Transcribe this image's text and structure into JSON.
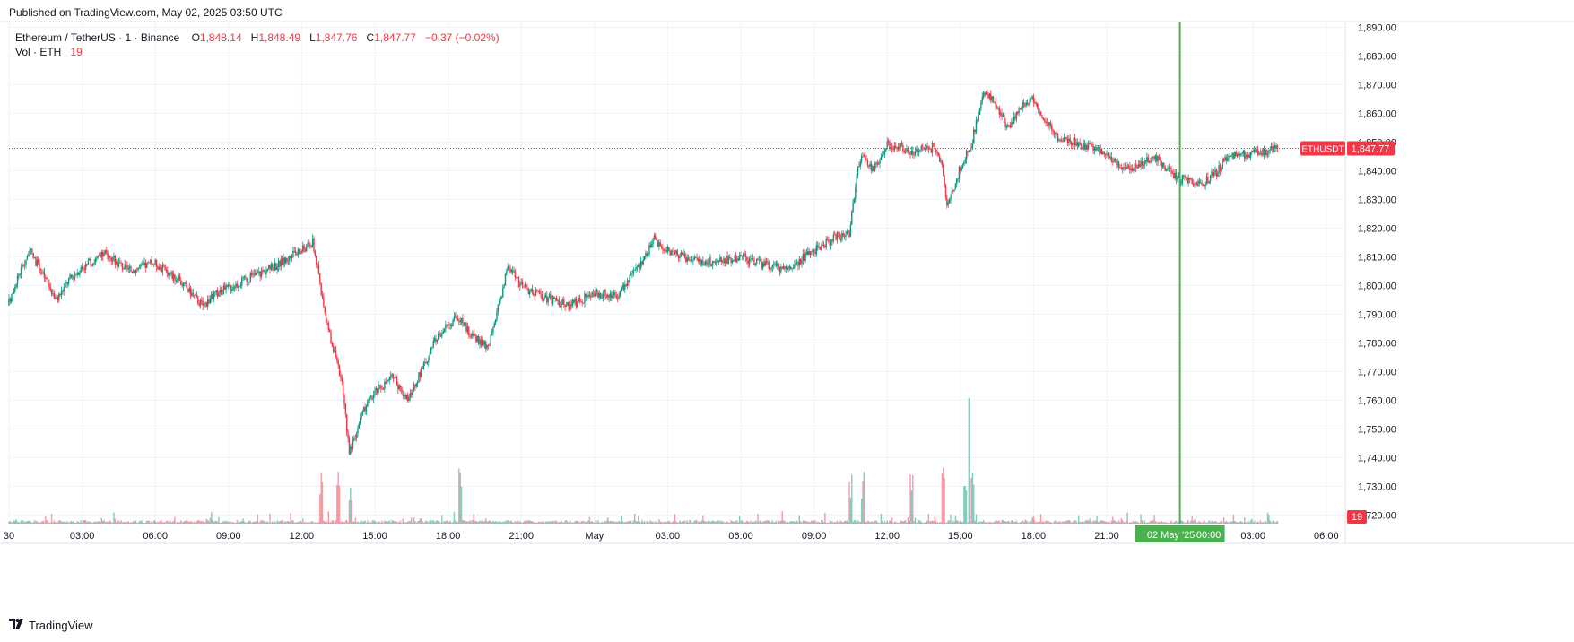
{
  "header": {
    "published": "Published on TradingView.com, May 02, 2025 03:50 UTC"
  },
  "legend": {
    "symbol": "Ethereum / TetherUS · 1 · Binance",
    "open_label": "O",
    "open": "1,848.14",
    "high_label": "H",
    "high": "1,848.49",
    "low_label": "L",
    "low": "1,847.76",
    "close_label": "C",
    "close": "1,847.77",
    "change": "−0.37 (−0.02%)",
    "volume_label": "Vol · ETH",
    "volume": "19"
  },
  "footer": {
    "brand": "TradingView",
    "logo": "TV-logo-icon"
  },
  "colors": {
    "up": "#089981",
    "down": "#f23645",
    "crosshair": "#4caf50",
    "grid": "#f0f3fa",
    "text": "#131722"
  },
  "chart_data": {
    "type": "candlestick",
    "title": "Ethereum / TetherUS · 1 · Binance",
    "interval": "1 minute",
    "xlabel": "",
    "ylabel": "",
    "ylim": [
      1717,
      1892
    ],
    "y_ticks": [
      "1,890.00",
      "1,880.00",
      "1,870.00",
      "1,860.00",
      "1,850.00",
      "1,840.00",
      "1,830.00",
      "1,820.00",
      "1,810.00",
      "1,800.00",
      "1,790.00",
      "1,780.00",
      "1,770.00",
      "1,760.00",
      "1,750.00",
      "1,740.00",
      "1,730.00",
      "1,720.00"
    ],
    "y_tick_values": [
      1890,
      1880,
      1870,
      1860,
      1850,
      1840,
      1830,
      1820,
      1810,
      1800,
      1790,
      1780,
      1770,
      1760,
      1750,
      1740,
      1730,
      1720
    ],
    "x_ticks": [
      "30",
      "03:00",
      "06:00",
      "09:00",
      "12:00",
      "15:00",
      "18:00",
      "21:00",
      "May",
      "03:00",
      "06:00",
      "09:00",
      "12:00",
      "15:00",
      "18:00",
      "21:00",
      "03:00",
      "06:00"
    ],
    "x_tick_hours": [
      0,
      3,
      6,
      9,
      12,
      15,
      18,
      21,
      24,
      27,
      30,
      33,
      36,
      39,
      42,
      45,
      51,
      54
    ],
    "price_path": {
      "hours": [
        0,
        0.4,
        0.9,
        1.3,
        2.0,
        2.5,
        3.0,
        4.0,
        5.0,
        6.0,
        7.0,
        8.0,
        8.5,
        9.0,
        10.0,
        11.0,
        12.0,
        12.5,
        12.7,
        13.0,
        13.4,
        13.7,
        14.0,
        14.4,
        14.8,
        15.2,
        15.8,
        16.4,
        17.0,
        17.6,
        18.0,
        18.5,
        19.0,
        19.7,
        20.0,
        20.5,
        21.0,
        22.0,
        23.0,
        24.0,
        25.0,
        26.0,
        26.5,
        27.0,
        28.0,
        29.0,
        30.0,
        31.0,
        32.0,
        33.0,
        34.0,
        34.5,
        34.8,
        35.0,
        35.5,
        36.0,
        37.0,
        38.0,
        38.3,
        38.5,
        38.8,
        39.0,
        39.3,
        39.5,
        40.0,
        40.5,
        41.0,
        41.5,
        42.0,
        43.0,
        44.0,
        45.0,
        46.0,
        47.0,
        48.0,
        49.0,
        49.5,
        50.0,
        51.0,
        52.0
      ],
      "prices": [
        1793,
        1803,
        1812,
        1806,
        1795,
        1802,
        1806,
        1811,
        1805,
        1808,
        1802,
        1793,
        1797,
        1799,
        1803,
        1807,
        1812,
        1815,
        1806,
        1790,
        1776,
        1766,
        1742,
        1752,
        1760,
        1764,
        1768,
        1760,
        1771,
        1782,
        1786,
        1789,
        1783,
        1778,
        1788,
        1807,
        1800,
        1796,
        1793,
        1797,
        1797,
        1808,
        1816,
        1812,
        1809,
        1808,
        1810,
        1807,
        1806,
        1812,
        1817,
        1818,
        1838,
        1846,
        1840,
        1849,
        1847,
        1848,
        1842,
        1828,
        1834,
        1840,
        1846,
        1849,
        1868,
        1863,
        1855,
        1862,
        1865,
        1852,
        1849,
        1846,
        1840,
        1845,
        1837,
        1836,
        1839,
        1845,
        1846,
        1847.77
      ]
    },
    "last_price": "1,847.77",
    "last_price_label": "ETHUSDT",
    "volume_last": "19",
    "crosshair_label": "02 May '25",
    "crosshair_time": "00:00",
    "crosshair_hour": 48.0,
    "series": [
      {
        "name": "Ethereum / TetherUS",
        "kind": "candles"
      },
      {
        "name": "Vol · ETH",
        "kind": "volume"
      }
    ]
  }
}
